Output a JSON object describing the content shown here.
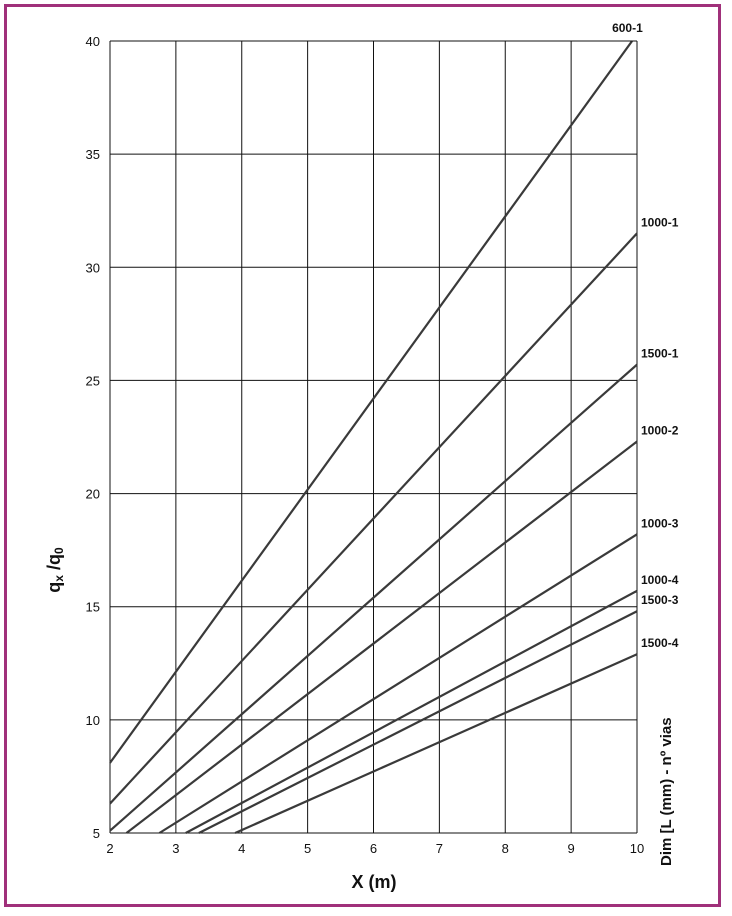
{
  "chart_data": {
    "type": "line",
    "xlabel": "X (m)",
    "ylabel": {
      "q1": "q",
      "x_sub": "x",
      "mid": " /q",
      "zero_sub": "0"
    },
    "legend_title": "Dim [L (mm) - nº vias",
    "xlim": [
      2,
      10
    ],
    "ylim": [
      5,
      40
    ],
    "x_ticks": [
      2,
      3,
      4,
      5,
      6,
      7,
      8,
      9,
      10
    ],
    "y_ticks": [
      5,
      10,
      15,
      20,
      25,
      30,
      35,
      40
    ],
    "grid": true,
    "series": [
      {
        "name": "600-1",
        "x": [
          2,
          10
        ],
        "y": [
          8.1,
          40.3
        ]
      },
      {
        "name": "1000-1",
        "x": [
          2,
          10
        ],
        "y": [
          6.3,
          31.5
        ]
      },
      {
        "name": "1500-1",
        "x": [
          2,
          10
        ],
        "y": [
          5.1,
          25.7
        ]
      },
      {
        "name": "1000-2",
        "x": [
          2.25,
          10
        ],
        "y": [
          5.0,
          22.3
        ]
      },
      {
        "name": "1000-3",
        "x": [
          2.75,
          10
        ],
        "y": [
          5.0,
          18.2
        ]
      },
      {
        "name": "1000-4",
        "x": [
          3.15,
          10
        ],
        "y": [
          5.0,
          15.7
        ]
      },
      {
        "name": "1500-3",
        "x": [
          3.35,
          10
        ],
        "y": [
          5.0,
          14.8
        ]
      },
      {
        "name": "1500-4",
        "x": [
          3.9,
          10
        ],
        "y": [
          5.0,
          12.9
        ]
      }
    ]
  },
  "colors": {
    "frame": "#a0307a",
    "lines": "#3a3a3a",
    "grid": "#111111"
  }
}
